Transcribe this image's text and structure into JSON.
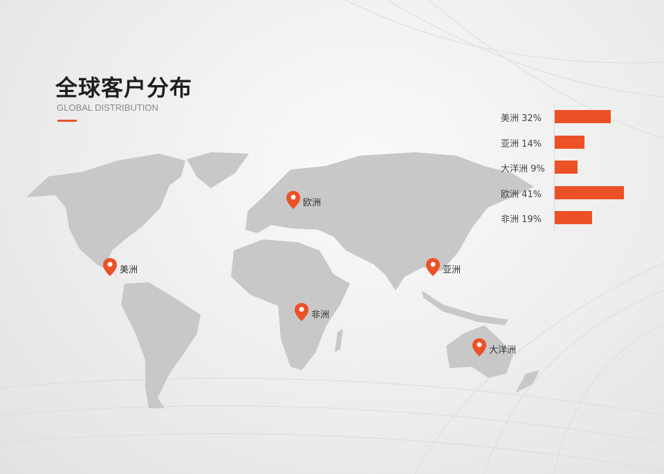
{
  "header": {
    "title": "全球客户分布",
    "subtitle": "GLOBAL DISTRIBUTION"
  },
  "accent_color": "#ec5026",
  "map_pins": [
    {
      "label": "美洲",
      "icon": "map-pin-icon"
    },
    {
      "label": "欧洲",
      "icon": "map-pin-icon"
    },
    {
      "label": "非洲",
      "icon": "map-pin-icon"
    },
    {
      "label": "亚洲",
      "icon": "map-pin-icon"
    },
    {
      "label": "大洋洲",
      "icon": "map-pin-icon"
    }
  ],
  "chart_data": {
    "type": "bar",
    "orientation": "horizontal",
    "categories": [
      "美洲",
      "亚洲",
      "大洋洲",
      "欧洲",
      "非洲"
    ],
    "values": [
      32,
      14,
      9,
      41,
      19
    ],
    "labels": [
      "美洲 32%",
      "亚洲 14%",
      "大洋洲 9%",
      "欧洲 41%",
      "非洲 19%"
    ],
    "unit": "%"
  }
}
